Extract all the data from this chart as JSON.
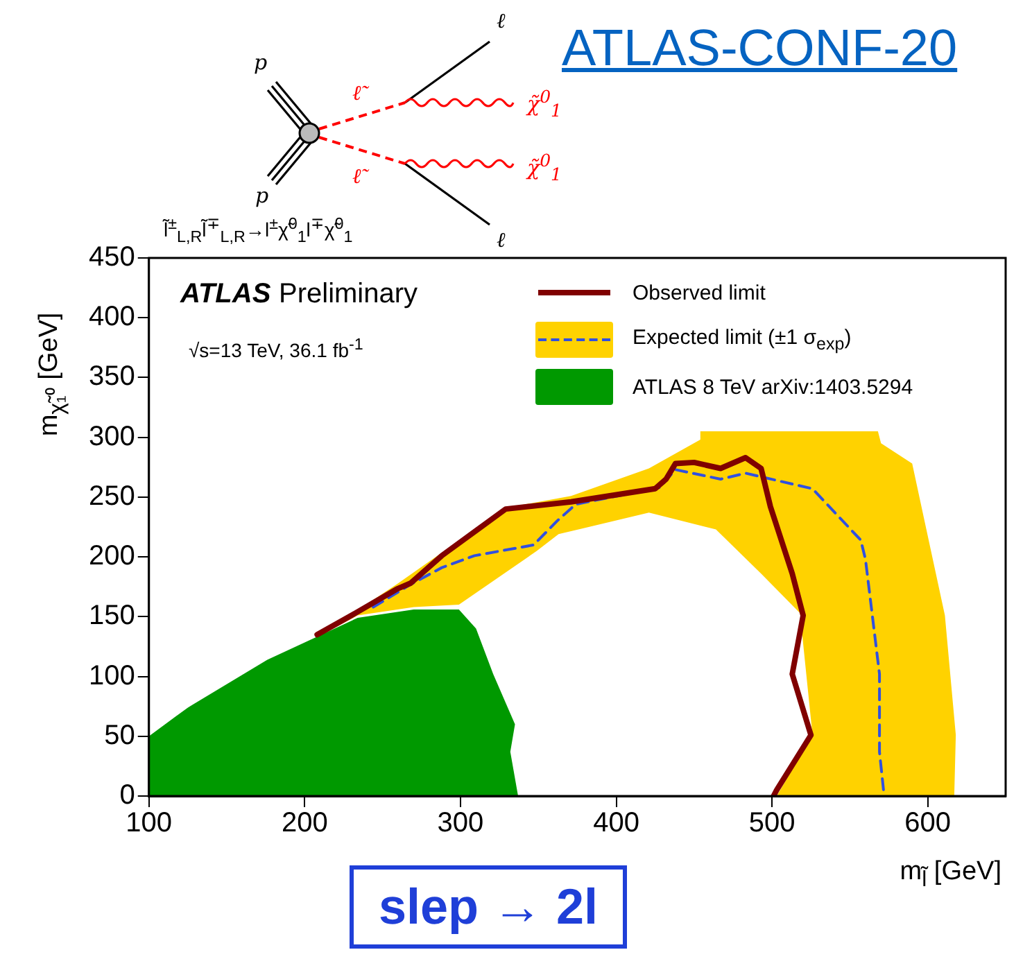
{
  "chart_data": {
    "type": "line",
    "title": "ATLAS-CONF-20",
    "xlabel": "m$_{l̃}$ [GeV]",
    "ylabel": "m$_{χ̃₁⁰}$ [GeV]",
    "xlim": [
      100,
      650
    ],
    "xticks": [
      100,
      200,
      300,
      400,
      500,
      600
    ],
    "ylim": [
      0,
      450
    ],
    "yticks": [
      0,
      50,
      100,
      150,
      200,
      250,
      300,
      350,
      400,
      450
    ],
    "grid": false,
    "legend": "top right",
    "series": [
      {
        "type": "area",
        "name": "ATLAS 8 TeV arXiv:1403.5294",
        "color": "#009900",
        "x": [
          100,
          100,
          125,
          176,
          234,
          270,
          299,
          310,
          321,
          335,
          332,
          337
        ],
        "values": [
          0,
          50,
          74,
          114,
          149,
          156,
          156,
          140,
          102,
          60,
          37,
          0
        ]
      },
      {
        "type": "area",
        "name": "Expected limit (±1 σ$_{exp}$)",
        "color": "#ffd200",
        "x": [
          208,
          259,
          329,
          371,
          421,
          454,
          454,
          568,
          570,
          590,
          611,
          618,
          617,
          503,
          526,
          518,
          493,
          464,
          421,
          363,
          349,
          299,
          270,
          234,
          208
        ],
        "values": [
          133,
          177,
          241,
          251,
          274,
          298,
          305,
          305,
          295,
          278,
          151,
          51,
          0,
          0,
          51,
          153,
          186,
          223,
          237,
          219,
          205,
          160,
          158,
          151,
          133
        ]
      },
      {
        "type": "line",
        "color": "#3050e0",
        "line_style": "dashed",
        "x": [
          244,
          268,
          288,
          309,
          347,
          362,
          374,
          428,
          438,
          467,
          483,
          526,
          557,
          560,
          569,
          569,
          572
        ],
        "values": [
          158,
          177,
          191,
          201,
          210,
          230,
          244,
          258,
          273,
          265,
          270,
          257,
          214,
          198,
          102,
          37,
          0
        ]
      },
      {
        "type": "line",
        "name": "Observed limit",
        "color": "#800000",
        "x": [
          208,
          230,
          259,
          268,
          288,
          329,
          371,
          425,
          432,
          438,
          450,
          467,
          483,
          493,
          499,
          513,
          520,
          513,
          525,
          503,
          501
        ],
        "values": [
          135,
          151,
          173,
          178,
          201,
          240,
          246,
          257,
          265,
          278,
          279,
          274,
          283,
          274,
          242,
          186,
          151,
          102,
          51,
          5,
          0
        ]
      }
    ],
    "annotations": [
      "ATLAS",
      "Preliminary",
      "√s=13 TeV, 36.1 fb$^{-1}$",
      "slep → 2l",
      "p",
      "p",
      "ℓ̃",
      "ℓ̃",
      "χ̃$^{0}$$_{1}$",
      "χ̃$^{0}$$_{1}$",
      "ℓ",
      "ℓ",
      "l̃$^{±}$$_{L,R}$l̃$^{∓}$$_{L,R}$→l$^{±}$χ̃$^{0}$$_{1}$l$^{∓}$χ̃$^{0}$$_{1}$"
    ]
  }
}
